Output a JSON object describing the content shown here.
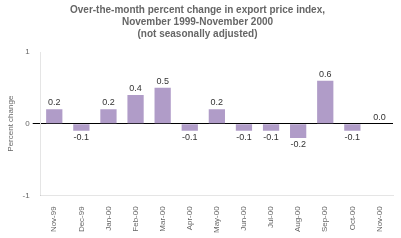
{
  "chart_data": {
    "type": "bar",
    "title": [
      "Over-the-month percent change in export price index,",
      "November 1999-November 2000",
      "(not seasonally adjusted)"
    ],
    "categories": [
      "Nov-99",
      "Dec-99",
      "Jan-00",
      "Feb-00",
      "Mar-00",
      "Apr-00",
      "May-00",
      "Jun-00",
      "Jul-00",
      "Aug-00",
      "Sep-00",
      "Oct-00",
      "Nov-00"
    ],
    "values": [
      0.2,
      -0.1,
      0.2,
      0.4,
      0.5,
      -0.1,
      0.2,
      -0.1,
      -0.1,
      -0.2,
      0.6,
      -0.1,
      0.0
    ],
    "value_labels": [
      "0.2",
      "-0.1",
      "0.2",
      "0.4",
      "0.5",
      "-0.1",
      "0.2",
      "-0.1",
      "-0.1",
      "-0.2",
      "0.6",
      "-0.1",
      "0.0"
    ],
    "color": "#b09cc8",
    "ylabel": "Percent change",
    "ylim": [
      -1.0,
      1.0
    ],
    "yticks": [
      -1,
      0,
      1
    ],
    "grid": false,
    "data_labels": true
  }
}
